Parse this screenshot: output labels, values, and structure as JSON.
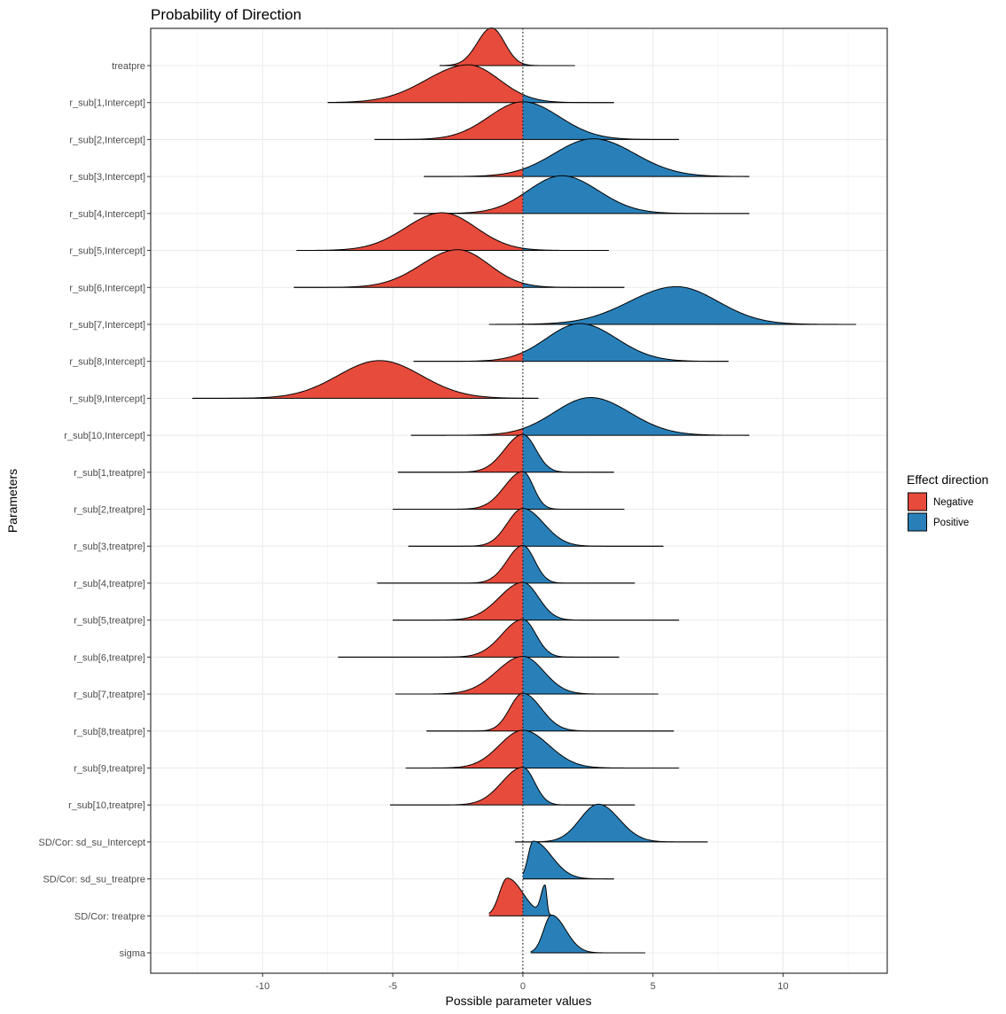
{
  "chart_data": {
    "type": "ridgeline",
    "title": "Probability of Direction",
    "xlabel": "Possible parameter values",
    "ylabel": "Parameters",
    "xlim": [
      -14.3,
      14.0
    ],
    "x_ticks": [
      -10,
      -5,
      0,
      5,
      10
    ],
    "x_tick_labels": [
      "-10",
      "-5",
      "0",
      "5",
      "10"
    ],
    "reference_line": 0,
    "grid": true,
    "legend": {
      "title": "Effect direction",
      "position": "right",
      "entries": [
        {
          "label": "Negative",
          "color": "#E64B3C"
        },
        {
          "label": "Positive",
          "color": "#2980B9"
        }
      ]
    },
    "series": [
      {
        "name": "treatpre",
        "range": [
          -3.2,
          2.0
        ],
        "peaks": [
          {
            "mu": -1.2,
            "sl": 0.55,
            "sr": 0.5,
            "w": 1
          }
        ]
      },
      {
        "name": "r_sub[1,Intercept]",
        "range": [
          -7.5,
          3.5
        ],
        "peaks": [
          {
            "mu": -2.1,
            "sl": 1.6,
            "sr": 1.2,
            "w": 1
          }
        ]
      },
      {
        "name": "r_sub[2,Intercept]",
        "range": [
          -5.7,
          6.0
        ],
        "peaks": [
          {
            "mu": 0.0,
            "sl": 1.3,
            "sr": 1.4,
            "w": 1
          }
        ]
      },
      {
        "name": "r_sub[3,Intercept]",
        "range": [
          -3.8,
          8.7
        ],
        "peaks": [
          {
            "mu": 2.7,
            "sl": 1.5,
            "sr": 1.6,
            "w": 1
          }
        ]
      },
      {
        "name": "r_sub[4,Intercept]",
        "range": [
          -4.2,
          8.7
        ],
        "peaks": [
          {
            "mu": 1.5,
            "sl": 1.3,
            "sr": 1.4,
            "w": 1
          }
        ]
      },
      {
        "name": "r_sub[5,Intercept]",
        "range": [
          -8.7,
          3.3
        ],
        "peaks": [
          {
            "mu": -3.1,
            "sl": 1.4,
            "sr": 1.3,
            "w": 1
          }
        ]
      },
      {
        "name": "r_sub[6,Intercept]",
        "range": [
          -8.8,
          3.9
        ],
        "peaks": [
          {
            "mu": -2.5,
            "sl": 1.4,
            "sr": 1.2,
            "w": 1
          }
        ]
      },
      {
        "name": "r_sub[7,Intercept]",
        "range": [
          -1.3,
          12.8
        ],
        "peaks": [
          {
            "mu": 5.9,
            "sl": 1.8,
            "sr": 1.6,
            "w": 1
          }
        ]
      },
      {
        "name": "r_sub[8,Intercept]",
        "range": [
          -4.2,
          7.9
        ],
        "peaks": [
          {
            "mu": 2.2,
            "sl": 1.3,
            "sr": 1.4,
            "w": 1
          }
        ]
      },
      {
        "name": "r_sub[9,Intercept]",
        "range": [
          -12.7,
          0.6
        ],
        "peaks": [
          {
            "mu": -5.5,
            "sl": 1.6,
            "sr": 1.6,
            "w": 1
          }
        ]
      },
      {
        "name": "r_sub[10,Intercept]",
        "range": [
          -4.3,
          8.7
        ],
        "peaks": [
          {
            "mu": 2.6,
            "sl": 1.4,
            "sr": 1.5,
            "w": 1
          }
        ]
      },
      {
        "name": "r_sub[1,treatpre]",
        "range": [
          -4.8,
          3.5
        ],
        "peaks": [
          {
            "mu": 0.0,
            "sl": 0.7,
            "sr": 0.5,
            "w": 1
          }
        ]
      },
      {
        "name": "r_sub[2,treatpre]",
        "range": [
          -5.0,
          3.9
        ],
        "peaks": [
          {
            "mu": 0.0,
            "sl": 0.7,
            "sr": 0.4,
            "w": 1
          }
        ]
      },
      {
        "name": "r_sub[3,treatpre]",
        "range": [
          -4.4,
          5.4
        ],
        "peaks": [
          {
            "mu": 0.0,
            "sl": 0.6,
            "sr": 0.8,
            "w": 1
          }
        ]
      },
      {
        "name": "r_sub[4,treatpre]",
        "range": [
          -5.6,
          4.3
        ],
        "peaks": [
          {
            "mu": 0.0,
            "sl": 0.6,
            "sr": 0.45,
            "w": 1
          }
        ]
      },
      {
        "name": "r_sub[5,treatpre]",
        "range": [
          -5.0,
          6.0
        ],
        "peaks": [
          {
            "mu": 0.0,
            "sl": 0.9,
            "sr": 0.6,
            "w": 1
          }
        ]
      },
      {
        "name": "r_sub[6,treatpre]",
        "range": [
          -7.1,
          3.7
        ],
        "peaks": [
          {
            "mu": 0.0,
            "sl": 0.8,
            "sr": 0.5,
            "w": 1
          }
        ]
      },
      {
        "name": "r_sub[7,treatpre]",
        "range": [
          -4.9,
          5.2
        ],
        "peaks": [
          {
            "mu": 0.0,
            "sl": 1.0,
            "sr": 0.8,
            "w": 1
          }
        ]
      },
      {
        "name": "r_sub[8,treatpre]",
        "range": [
          -3.7,
          5.8
        ],
        "peaks": [
          {
            "mu": 0.0,
            "sl": 0.5,
            "sr": 0.7,
            "w": 1
          }
        ]
      },
      {
        "name": "r_sub[9,treatpre]",
        "range": [
          -4.5,
          6.0
        ],
        "peaks": [
          {
            "mu": 0.0,
            "sl": 0.9,
            "sr": 1.0,
            "w": 1
          }
        ]
      },
      {
        "name": "r_sub[10,treatpre]",
        "range": [
          -5.1,
          4.3
        ],
        "peaks": [
          {
            "mu": 0.0,
            "sl": 0.8,
            "sr": 0.45,
            "w": 1
          }
        ]
      },
      {
        "name": "SD/Cor:  sd_su_Intercept",
        "range": [
          -0.3,
          7.1
        ],
        "peaks": [
          {
            "mu": 2.9,
            "sl": 0.7,
            "sr": 0.8,
            "w": 1
          }
        ]
      },
      {
        "name": "SD/Cor:  sd_su_treatpre",
        "range": [
          0.0,
          3.5
        ],
        "peaks": [
          {
            "mu": 0.4,
            "sl": 0.2,
            "sr": 0.7,
            "w": 1
          }
        ]
      },
      {
        "name": "SD/Cor:  treatpre",
        "range": [
          -1.3,
          1.2
        ],
        "peaks": [
          {
            "mu": -0.6,
            "sl": 0.3,
            "sr": 0.6,
            "w": 0.85
          },
          {
            "mu": 0.85,
            "sl": 0.15,
            "sr": 0.07,
            "w": 0.65
          }
        ],
        "flat_top": true
      },
      {
        "name": "sigma",
        "range": [
          0.3,
          4.7
        ],
        "peaks": [
          {
            "mu": 1.1,
            "sl": 0.3,
            "sr": 0.55,
            "w": 1
          }
        ]
      }
    ]
  }
}
